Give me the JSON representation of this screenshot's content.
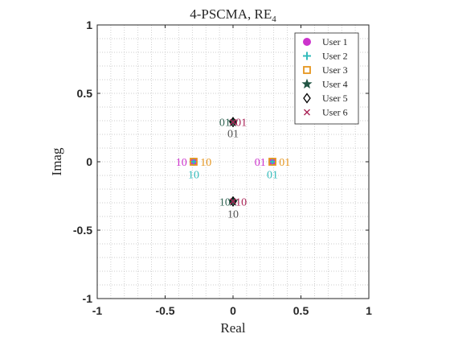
{
  "chart_data": {
    "type": "scatter",
    "title": "4-PSCMA, RE",
    "title_subscript": "4",
    "xlabel": "Real",
    "ylabel": "Imag",
    "xlim": [
      -1,
      1
    ],
    "ylim": [
      -1,
      1
    ],
    "xticks": [
      "-1",
      "-0.5",
      "0",
      "0.5",
      "1"
    ],
    "yticks": [
      "-1",
      "-0.5",
      "0",
      "0.5",
      "1"
    ],
    "grid": "minor-dotted",
    "legend_position": "top-right",
    "series": [
      {
        "name": "User 1",
        "marker": "circle",
        "color": "#cc33cc",
        "points": [
          [
            0.29,
            0.0
          ],
          [
            -0.29,
            0.0
          ]
        ]
      },
      {
        "name": "User 2",
        "marker": "plus",
        "color": "#33bbbb",
        "points": [
          [
            0.29,
            0.0
          ],
          [
            -0.29,
            0.0
          ]
        ]
      },
      {
        "name": "User 3",
        "marker": "square",
        "color": "#e6961e",
        "points": [
          [
            0.29,
            0.0
          ],
          [
            -0.29,
            0.0
          ]
        ]
      },
      {
        "name": "User 4",
        "marker": "pentagram",
        "color": "#225544",
        "points": [
          [
            0.0,
            0.29
          ],
          [
            0.0,
            -0.29
          ]
        ]
      },
      {
        "name": "User 5",
        "marker": "diamond",
        "color": "#000000",
        "points": [
          [
            0.0,
            0.29
          ],
          [
            0.0,
            -0.29
          ]
        ]
      },
      {
        "name": "User 6",
        "marker": "x",
        "color": "#aa2255",
        "points": [
          [
            0.0,
            0.29
          ],
          [
            0.0,
            -0.29
          ]
        ]
      }
    ],
    "annotations": [
      {
        "text": "01",
        "x": -0.06,
        "y": 0.29,
        "color": "#336655"
      },
      {
        "text": "01",
        "x": 0.06,
        "y": 0.29,
        "color": "#aa2255"
      },
      {
        "text": "01",
        "x": 0.0,
        "y": 0.21,
        "color": "#555555"
      },
      {
        "text": "10",
        "x": -0.38,
        "y": 0.0,
        "color": "#cc33cc"
      },
      {
        "text": "10",
        "x": -0.2,
        "y": 0.0,
        "color": "#e6961e"
      },
      {
        "text": "10",
        "x": -0.29,
        "y": -0.09,
        "color": "#33bbbb"
      },
      {
        "text": "01",
        "x": 0.2,
        "y": 0.0,
        "color": "#cc33cc"
      },
      {
        "text": "01",
        "x": 0.38,
        "y": 0.0,
        "color": "#e6961e"
      },
      {
        "text": "01",
        "x": 0.29,
        "y": -0.09,
        "color": "#33bbbb"
      },
      {
        "text": "10",
        "x": -0.06,
        "y": -0.29,
        "color": "#336655"
      },
      {
        "text": "10",
        "x": 0.06,
        "y": -0.29,
        "color": "#aa2255"
      },
      {
        "text": "10",
        "x": 0.0,
        "y": -0.38,
        "color": "#555555"
      }
    ]
  }
}
